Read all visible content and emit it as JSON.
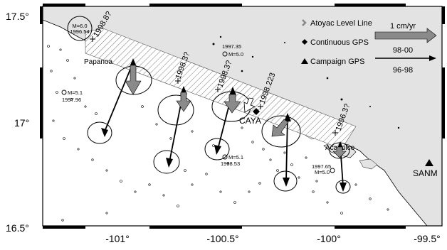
{
  "map": {
    "lat_ticks": [
      {
        "lat": 17.5,
        "label": "17.5°"
      },
      {
        "lat": 17.0,
        "label": "17°"
      },
      {
        "lat": 16.5,
        "label": "16.5°"
      }
    ],
    "lon_ticks": [
      {
        "lon": -101.0,
        "label": "-101°"
      },
      {
        "lon": -100.5,
        "label": "-100.5°"
      },
      {
        "lon": -100.0,
        "label": "-100°"
      },
      {
        "lon": -99.5,
        "label": "-99.5°"
      }
    ],
    "extent": {
      "lon_min": -101.35,
      "lon_max": -99.35,
      "lat_min": 16.48,
      "lat_max": 17.55
    }
  },
  "legend": {
    "level_line": {
      "label": "Atoyac Level Line"
    },
    "continuous_gps": {
      "label": "Continuous GPS"
    },
    "campaign_gps": {
      "label": "Campaign GPS"
    },
    "scale": {
      "label": "1 cm/yr"
    },
    "arrow_gray": {
      "label": "98-00",
      "color": "#8a8a8a"
    },
    "arrow_black": {
      "label": "96-98",
      "color": "#000000"
    }
  },
  "places": {
    "papanoa": "Papanoa",
    "caya": "CAYA",
    "acapulco": "Acapulco",
    "sanm": "SANM"
  },
  "quakes": [
    {
      "id": "q1",
      "mag": "M=6.0",
      "date": "1996.54"
    },
    {
      "id": "q2",
      "mag": "M=5.0",
      "date": "1997.35"
    },
    {
      "id": "q3",
      "mag": "M=5.1",
      "date": "1997.96"
    },
    {
      "id": "q4",
      "mag": "M=5.1",
      "date": "1998.53"
    },
    {
      "id": "q5",
      "mag": "M=5.0",
      "date": "1997.65"
    }
  ],
  "slips": [
    {
      "id": "s1",
      "label": "1998.8?"
    },
    {
      "id": "s2",
      "label": "1998.3?"
    },
    {
      "id": "s3",
      "label": "1998.3?"
    },
    {
      "id": "s4",
      "label": "1998.223"
    },
    {
      "id": "s5",
      "label": "1996.3?"
    }
  ],
  "colors": {
    "land": "#e3e3e3",
    "sea": "#ffffff",
    "frame": "#000000",
    "gray_arrow": "#8a8a8a"
  }
}
